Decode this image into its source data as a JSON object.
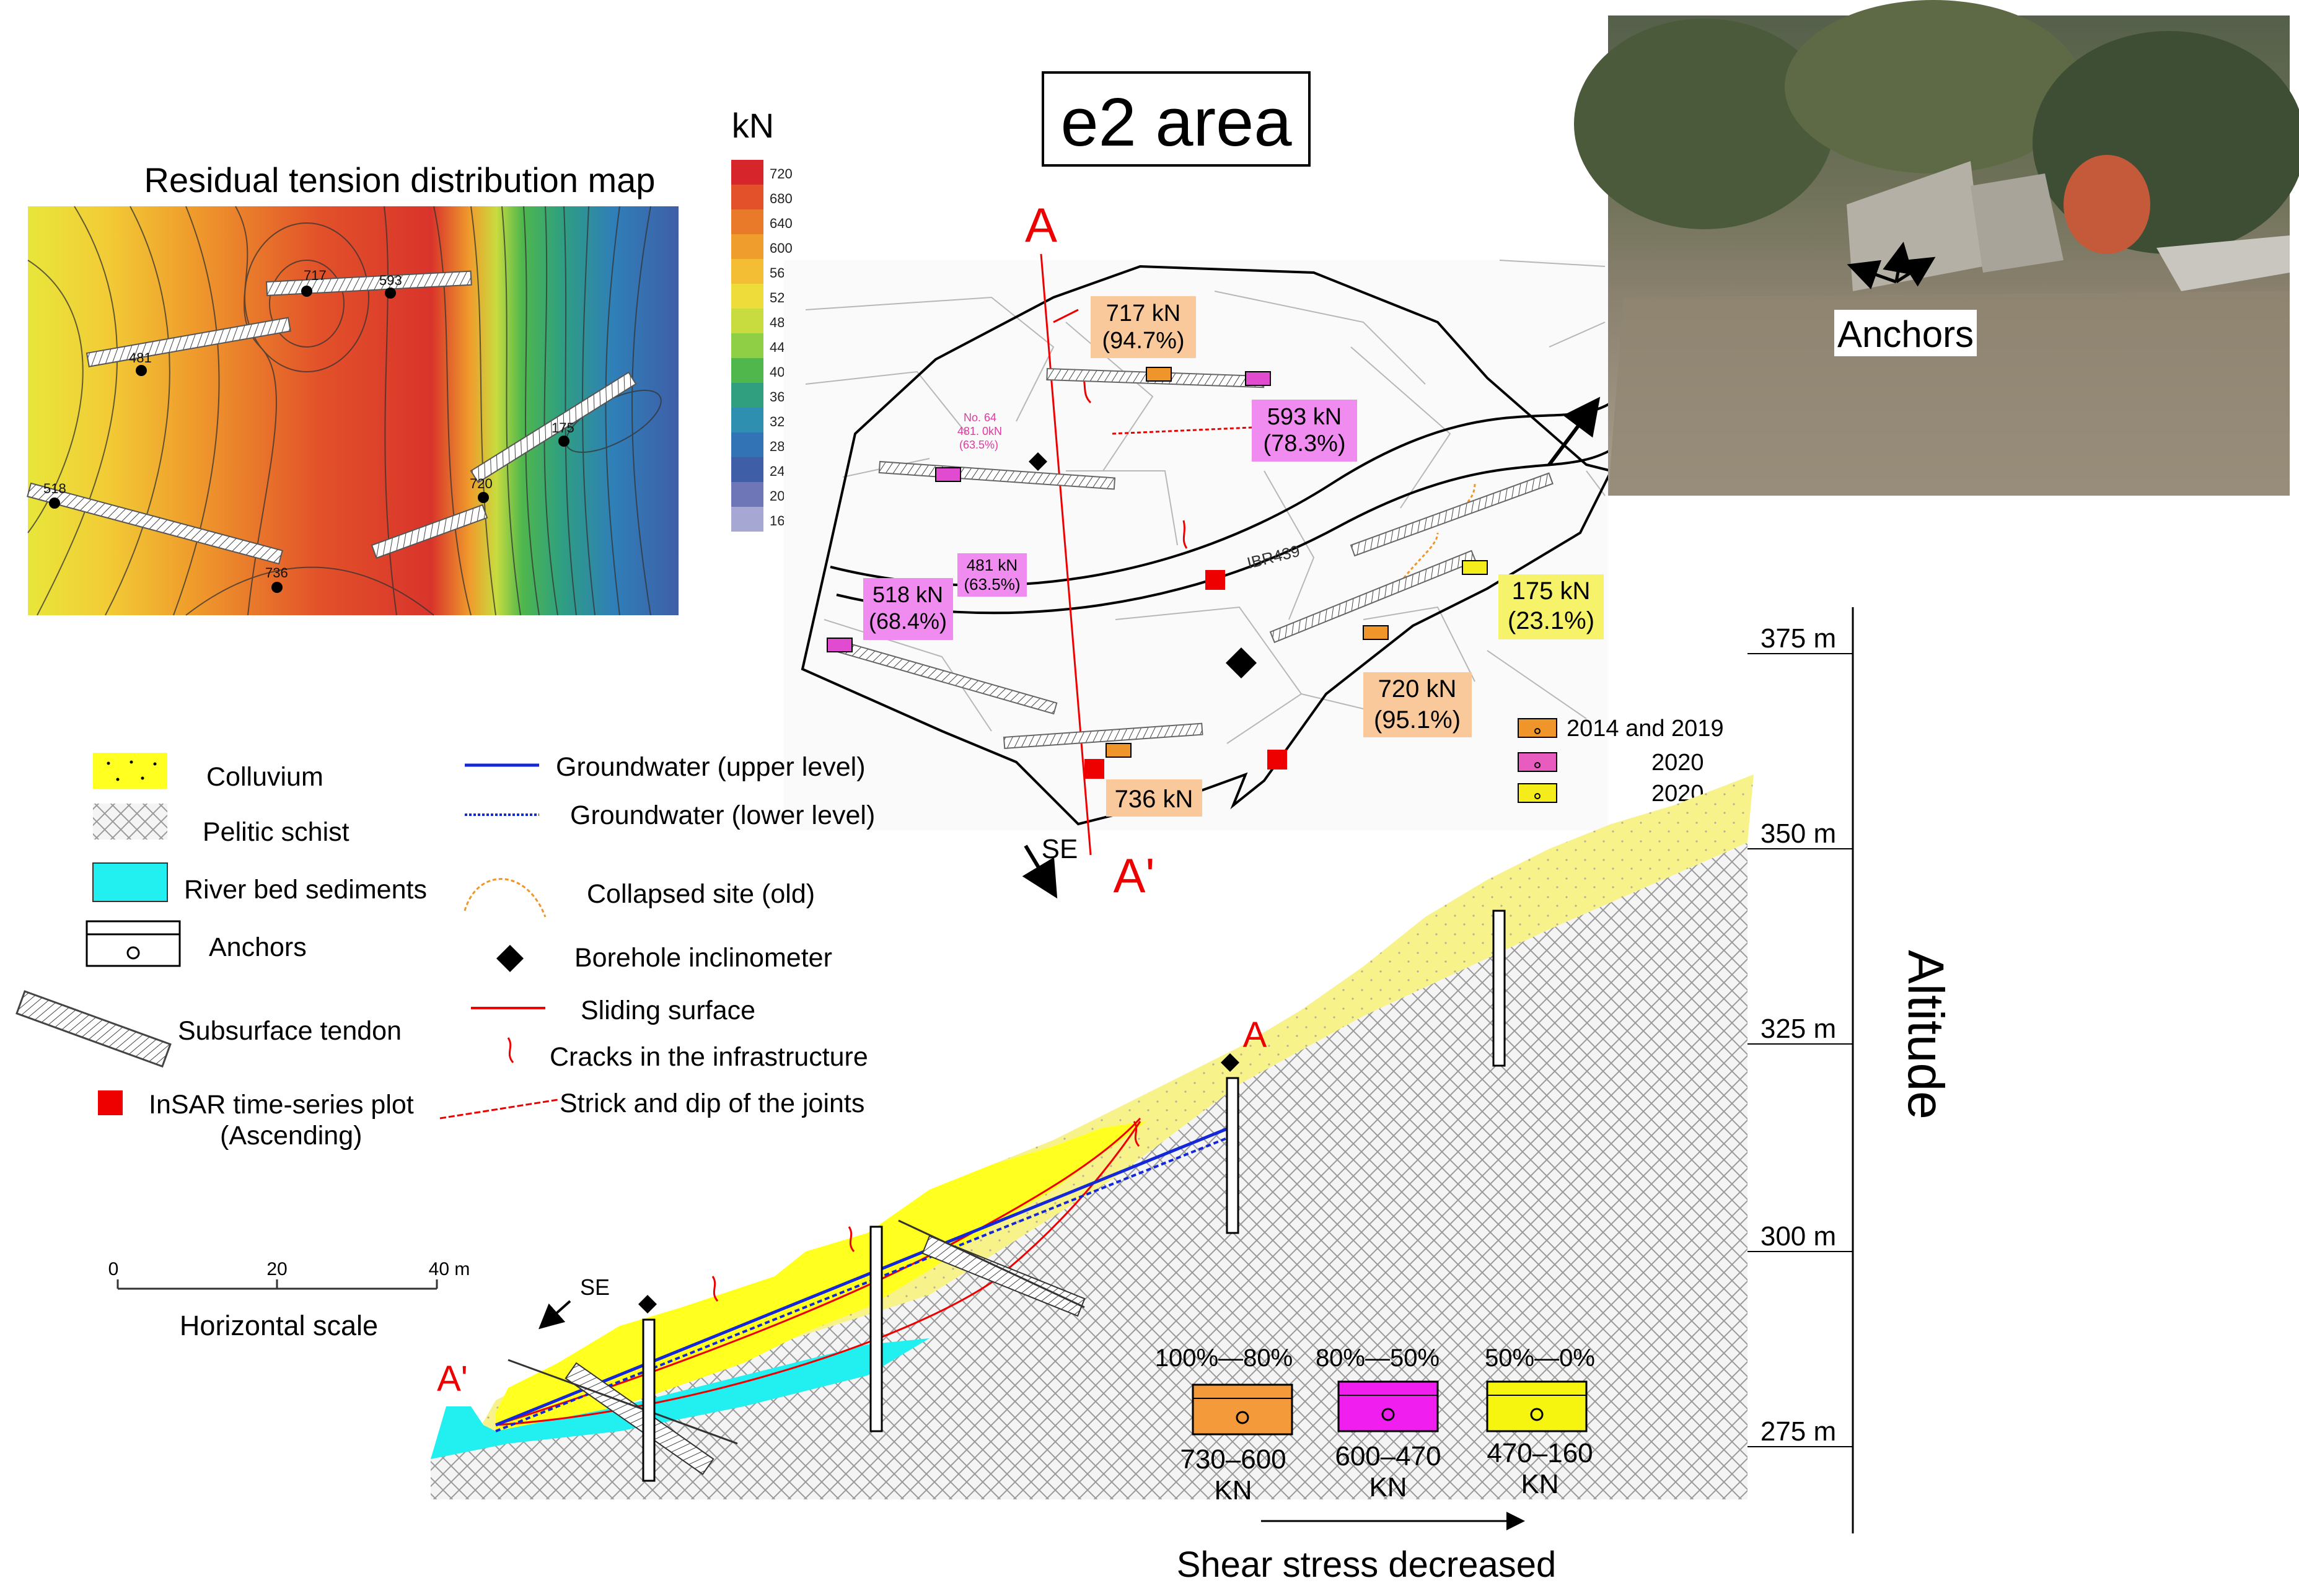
{
  "contour_map": {
    "title": "Residual tension distribution map",
    "points": [
      {
        "label": "717",
        "id": "p717"
      },
      {
        "label": "593",
        "id": "p593"
      },
      {
        "label": "481",
        "id": "p481"
      },
      {
        "label": "175",
        "id": "p175"
      },
      {
        "label": "720",
        "id": "p720"
      },
      {
        "label": "518",
        "id": "p518"
      },
      {
        "label": "736",
        "id": "p736"
      }
    ]
  },
  "colorbar": {
    "unit": "kN",
    "ticks": [
      "720",
      "680",
      "640",
      "600",
      "560",
      "520",
      "480",
      "440",
      "400",
      "360",
      "320",
      "280",
      "240",
      "200",
      "160"
    ],
    "colors": [
      "#d7262b",
      "#e2512a",
      "#e97a2a",
      "#ef9d2c",
      "#f3be33",
      "#eedc3a",
      "#c8dc3f",
      "#8ecf45",
      "#4fb74c",
      "#2f9f80",
      "#2f8fb0",
      "#3273b6",
      "#3f5ea8",
      "#6f76b8",
      "#a7a7d3"
    ]
  },
  "plan": {
    "area_title": "e2 area",
    "section_start": "A",
    "section_end": "A'",
    "direction": "SE",
    "road_label": "IBR439",
    "callouts": [
      {
        "line1": "717 kN",
        "line2": "(94.7%)",
        "color": "#f9c89b"
      },
      {
        "line1": "593 kN",
        "line2": "(78.3%)",
        "color": "#f08cf0"
      },
      {
        "line1": "481 kN",
        "line2": "(63.5%)",
        "color": "#f08cf0"
      },
      {
        "line1": "518 kN",
        "line2": "(68.4%)",
        "color": "#f08cf0"
      },
      {
        "line1": "175 kN",
        "line2": "(23.1%)",
        "color": "#f6f36a"
      },
      {
        "line1": "720 kN",
        "line2": "(95.1%)",
        "color": "#f9c89b"
      },
      {
        "line1": "736 kN",
        "line2": "",
        "color": "#f9c89b"
      }
    ],
    "borehole_note": {
      "line1": "No. 64",
      "line2": "481. 0kN",
      "line3": "(63.5%)"
    },
    "anchor_key": [
      {
        "label": "2014 and 2019",
        "color": "#f0952a"
      },
      {
        "label": "2020",
        "color": "#e85cc0"
      },
      {
        "label": "2020",
        "color": "#f5ec1c"
      }
    ]
  },
  "photo": {
    "label": "Anchors"
  },
  "legend": {
    "left": [
      {
        "label": "Colluvium",
        "symbol": "colluvium"
      },
      {
        "label": "Pelitic schist",
        "symbol": "schist"
      },
      {
        "label": "River bed sediments",
        "symbol": "river"
      },
      {
        "label": "Anchors",
        "symbol": "anchor"
      },
      {
        "label": "Subsurface tendon",
        "symbol": "tendon"
      },
      {
        "label": "InSAR time-series plot",
        "label2": "(Ascending)",
        "symbol": "insar"
      }
    ],
    "right": [
      {
        "label": "Groundwater (upper level)",
        "symbol": "gw-upper"
      },
      {
        "label": "Groundwater (lower level)",
        "symbol": "gw-lower"
      },
      {
        "label": "Collapsed site (old)",
        "symbol": "collapsed"
      },
      {
        "label": "Borehole inclinometer",
        "symbol": "borehole"
      },
      {
        "label": "Sliding surface",
        "symbol": "sliding"
      },
      {
        "label": "Cracks in the infrastructure",
        "symbol": "cracks"
      },
      {
        "label": "Strick and dip of the joints",
        "symbol": "joints"
      }
    ]
  },
  "scale": {
    "ticks": [
      "0",
      "20",
      "40 m"
    ],
    "label": "Horizontal scale"
  },
  "section": {
    "label_a": "A",
    "label_a_prime": "A'",
    "direction": "SE",
    "altitude_label": "Altitude",
    "altitudes": [
      "375 m",
      "350 m",
      "325 m",
      "300 m",
      "275 m"
    ]
  },
  "stress_key": {
    "items": [
      {
        "pct": "100%—80%",
        "range": "730–600",
        "unit": "KN",
        "color": "#f59a3a"
      },
      {
        "pct": "80%—50%",
        "range": "600–470",
        "unit": "KN",
        "color": "#f01ff0"
      },
      {
        "pct": "50%—0%",
        "range": "470–160",
        "unit": "KN",
        "color": "#f5f50f"
      }
    ],
    "caption": "Shear stress decreased"
  }
}
